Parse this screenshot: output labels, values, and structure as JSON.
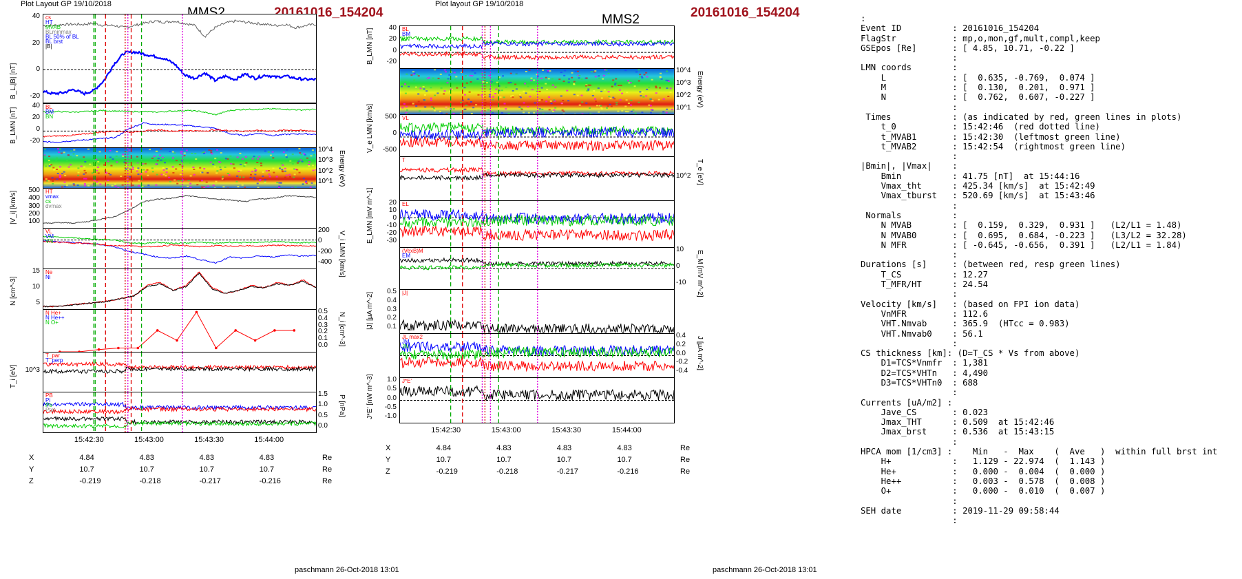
{
  "left": {
    "header_small": "Plot Layout GP 19/10/2018",
    "title": "MMS2",
    "event": "20161016_154204",
    "footer": "paschmann 26-Oct-2018 13:01"
  },
  "right": {
    "header_small": "Plot layout GP 19/10/2018",
    "title": "MMS2",
    "event": "20161016_154204",
    "footer": "paschmann 26-Oct-2018 13:01"
  },
  "colors": {
    "bl": "#0000ff",
    "bm": "#00cc00",
    "bn": "#ff0000",
    "btot": "#606060",
    "black": "#000000",
    "red_line": "#dd0000",
    "green_line": "#00aa00",
    "magenta": "#dd00dd"
  },
  "time_ticks": [
    "15:42:30",
    "15:43:00",
    "15:43:30",
    "15:44:00"
  ],
  "orbit": {
    "labels": [
      "X",
      "Y",
      "Z"
    ],
    "unit": "Re",
    "rows": [
      [
        "4.84",
        "4.83",
        "4.83",
        "4.83"
      ],
      [
        "10.7",
        "10.7",
        "10.7",
        "10.7"
      ],
      [
        "-0.219",
        "-0.218",
        "-0.217",
        "-0.216"
      ]
    ]
  },
  "chart_data": [
    {
      "type": "line",
      "panel": "BL-Btot",
      "ylabel": "B_L,|B| [nT]",
      "ylim": [
        -30,
        50
      ],
      "yticks": [
        "40",
        "20",
        "0",
        "-20"
      ],
      "legend": [
        "cs",
        "HT",
        "MVAB",
        "BLminmax",
        "BL 50% of BL",
        "BL brst",
        "|B|"
      ],
      "series": [
        {
          "name": "|B|",
          "values": [
            40,
            40,
            41,
            41,
            41,
            42,
            40,
            40,
            38,
            40,
            42,
            44,
            43,
            44,
            42,
            40,
            30,
            38,
            42,
            44,
            43,
            42,
            41,
            40,
            41,
            38,
            40,
            41
          ]
        },
        {
          "name": "BL",
          "values": [
            -20,
            -22,
            -21,
            -18,
            -22,
            -19,
            -10,
            5,
            15,
            16,
            14,
            12,
            10,
            5,
            -5,
            -8,
            -3,
            -10,
            -6,
            -9,
            -4,
            -8,
            -5,
            -7,
            -6,
            -8,
            -9,
            -9
          ]
        }
      ]
    },
    {
      "type": "line",
      "panel": "BLMN-left",
      "ylabel": "B_LMN [nT]",
      "ylim": [
        -30,
        50
      ],
      "yticks": [
        "40",
        "20",
        "0",
        "-20"
      ],
      "legend": [
        "BL",
        "BM",
        "BN"
      ],
      "series": [
        {
          "name": "BL",
          "values": [
            -20,
            -20,
            -18,
            -16,
            -14,
            -12,
            5,
            15,
            12,
            12,
            10,
            8,
            5,
            -5,
            -8,
            -4,
            -8,
            -6,
            -5,
            -6
          ]
        },
        {
          "name": "BM",
          "values": [
            35,
            36,
            35,
            36,
            38,
            37,
            36,
            36,
            35,
            37,
            38,
            36,
            30,
            38,
            40,
            40,
            41,
            40,
            39,
            40
          ]
        },
        {
          "name": "BN",
          "values": [
            -10,
            -9,
            -8,
            -5,
            -2,
            0,
            -2,
            0,
            2,
            0,
            1,
            0,
            2,
            1,
            0,
            1,
            0,
            2,
            1,
            0
          ]
        }
      ]
    },
    {
      "type": "heatmap",
      "panel": "ion-spectrogram",
      "ylabel": "Energy (eV)",
      "yticks": [
        "10^4",
        "10^3",
        "10^2",
        "10^1"
      ]
    },
    {
      "type": "line",
      "panel": "Vi-magnitude",
      "ylabel": "|V_i| [km/s]",
      "ylim": [
        50,
        500
      ],
      "yticks": [
        "500",
        "400",
        "300",
        "200",
        "100"
      ],
      "legend": [
        "HT",
        "vmax",
        "cs",
        "dvmax"
      ],
      "series": [
        {
          "name": "|Vi|",
          "values": [
            100,
            110,
            105,
            120,
            150,
            180,
            260,
            350,
            380,
            390,
            420,
            400,
            380,
            370,
            350,
            380,
            390,
            420,
            410,
            400
          ]
        }
      ]
    },
    {
      "type": "line",
      "panel": "Vi-LMN",
      "ylabel": "V_i LMN [km/s]",
      "ylim": [
        -500,
        200
      ],
      "yticks": [
        "200",
        "0",
        "-200",
        "-400"
      ],
      "legend": [
        "VL",
        "VM",
        "VN"
      ],
      "series": [
        {
          "name": "VL",
          "values": [
            -20,
            -30,
            -40,
            -60,
            -80,
            -120,
            -200,
            -250,
            -300,
            -320,
            -280,
            -350,
            -400,
            -300,
            -320,
            -280,
            -300,
            -260,
            -280,
            -270
          ]
        },
        {
          "name": "VM",
          "values": [
            60,
            50,
            40,
            20,
            10,
            0,
            -50,
            -60,
            -40,
            -60,
            -50,
            -40,
            -60,
            -40,
            -50,
            -40,
            -30,
            -40,
            -50,
            -40
          ]
        },
        {
          "name": "VN",
          "values": [
            -30,
            -40,
            -50,
            -60,
            -80,
            -100,
            -100,
            -120,
            -110,
            -90,
            -100,
            -120,
            -100,
            -110,
            -100,
            -110,
            -90,
            -100,
            -100,
            -110
          ]
        }
      ]
    },
    {
      "type": "line",
      "panel": "density",
      "ylabel": "N [cm^-3]",
      "ylim": [
        0,
        15
      ],
      "yticks": [
        "15",
        "10",
        "5"
      ],
      "legend": [
        "Ne",
        "Ni"
      ],
      "series": [
        {
          "name": "Ne",
          "values": [
            1,
            1,
            1.5,
            2,
            2.5,
            3,
            4,
            5,
            9,
            10,
            7,
            9,
            14,
            8,
            6,
            7,
            9,
            8,
            10,
            9,
            11,
            8
          ]
        },
        {
          "name": "Ni",
          "values": [
            1,
            1,
            1.4,
            2,
            2.4,
            3,
            4,
            5,
            8.5,
            9.5,
            7,
            8.5,
            13.5,
            7.5,
            6,
            7,
            8.5,
            8,
            9.5,
            9,
            10.5,
            8
          ]
        }
      ]
    },
    {
      "type": "line",
      "panel": "HPCA",
      "ylabel": "N_i [cm^-3]",
      "ylim": [
        0,
        0.55
      ],
      "yticks": [
        "0.5",
        "0.4",
        "0.3",
        "0.2",
        "0.1",
        "0.0"
      ],
      "legend": [
        "N He+",
        "N He++",
        "N O+"
      ],
      "series": [
        {
          "name": "N He++",
          "values": [
            0.0,
            0.0,
            0.03,
            0.05,
            0.05,
            0.28,
            0.15,
            0.52,
            0.05,
            0.28,
            0.15,
            0.28,
            0.28
          ]
        }
      ]
    },
    {
      "type": "line",
      "panel": "Ti",
      "ylabel": "T_i [eV]",
      "yticks": [
        "10^3"
      ],
      "legend": [
        "T_par",
        "T_perp"
      ]
    },
    {
      "type": "line",
      "panel": "pressure",
      "ylabel": "P [nPa]",
      "ylim": [
        0,
        1.5
      ],
      "yticks": [
        "1.5",
        "1.0",
        "0.5",
        "0.0"
      ],
      "legend": [
        "PB",
        "Pi",
        "Pe",
        "Ptot"
      ]
    },
    {
      "type": "line",
      "panel": "BLMN-right",
      "ylabel": "B_LMN [nT]",
      "ylim": [
        -30,
        50
      ],
      "yticks": [
        "40",
        "20",
        "0",
        "-20"
      ],
      "legend": [
        "BL",
        "BM",
        "BN"
      ]
    },
    {
      "type": "heatmap",
      "panel": "electron-spectrogram",
      "ylabel": "Energy (eV)",
      "yticks": [
        "10^4",
        "10^3",
        "10^2",
        "10^1"
      ]
    },
    {
      "type": "line",
      "panel": "Ve-LMN",
      "ylabel": "V_e LMN [km/s]",
      "ylim": [
        -700,
        800
      ],
      "yticks": [
        "500",
        "0",
        "-500"
      ],
      "legend": [
        "VL"
      ]
    },
    {
      "type": "line",
      "panel": "Te",
      "ylabel": "T_e [eV]",
      "yticks": [
        "10^2"
      ],
      "legend": [
        "T"
      ]
    },
    {
      "type": "line",
      "panel": "E-LMN",
      "ylabel": "E_LMN [mV m^-1]",
      "ylim": [
        -35,
        20
      ],
      "yticks": [
        "20",
        "10",
        "0",
        "-10",
        "-20",
        "-30"
      ],
      "legend": [
        "EL"
      ]
    },
    {
      "type": "line",
      "panel": "EM",
      "ylabel": "E_M [mV m^-2]",
      "ylim": [
        -15,
        15
      ],
      "yticks": [
        "10",
        "0",
        "-10"
      ],
      "legend": [
        "(VexB)M",
        "EM"
      ]
    },
    {
      "type": "line",
      "panel": "J-magnitude",
      "ylabel": "|J| [μA m^-2]",
      "ylim": [
        0,
        0.5
      ],
      "yticks": [
        "0.5",
        "0.4",
        "0.3",
        "0.2",
        "0.1"
      ],
      "legend": [
        "|J|"
      ]
    },
    {
      "type": "line",
      "panel": "J-components",
      "ylabel": "J [μA m^-2]",
      "ylim": [
        -0.5,
        0.5
      ],
      "yticks": [
        "0.4",
        "0.2",
        "0.0",
        "-0.2",
        "-0.4"
      ],
      "legend": [
        "JL max2",
        "JM",
        "JN"
      ]
    },
    {
      "type": "line",
      "panel": "JdotE",
      "ylabel": "J*E' [nW m^-3]",
      "ylim": [
        -1.0,
        1.0
      ],
      "yticks": [
        "1.0",
        "0.5",
        "0.0",
        "-0.5",
        "-1.0"
      ],
      "legend": [
        "J*E'"
      ]
    }
  ],
  "meta_lines": [
    ":",
    "Event ID          : 20161016_154204",
    "FlagStr           : mp,o,mon,gf,mult,compl,keep",
    "GSEpos [Re]       : [ 4.85, 10.71, -0.22 ]",
    "                  :",
    "LMN coords        :",
    "    L             : [  0.635, -0.769,  0.074 ]",
    "    M             : [  0.130,  0.201,  0.971 ]",
    "    N             : [  0.762,  0.607, -0.227 ]",
    "                  :",
    " Times            : (as indicated by red, green lines in plots)",
    "    t_0           : 15:42:46  (red dotted line)",
    "    t_MVAB1       : 15:42:30  (leftmost green line)",
    "    t_MVAB2       : 15:42:54  (rightmost green line)",
    "                  :",
    "|Bmin|, |Vmax|    :",
    "    Bmin          : 41.75 [nT]  at 15:44:16",
    "    Vmax_tht      : 425.34 [km/s]  at 15:42:49",
    "    Vmax_tburst   : 520.69 [km/s]  at 15:43:46",
    "                  :",
    " Normals          :",
    "    N MVAB        : [  0.159,  0.329,  0.931 ]   (L2/L1 = 1.48)",
    "    N MVAB0       : [  0.695,  0.684, -0.223 ]   (L3/L2 = 32.28)",
    "    N MFR         : [ -0.645, -0.656,  0.391 ]   (L2/L1 = 1.84)",
    "                  :",
    "Durations [s]     : (between red, resp green lines)",
    "    T_CS          : 12.27",
    "    T_MFR/HT      : 24.54",
    "                  :",
    "Velocity [km/s]   : (based on FPI ion data)",
    "    VnMFR         : 112.6",
    "    VHT.Nmvab     : 365.9  (HTcc = 0.983)",
    "    VHT.Nmvab0    : 56.1",
    "                  :",
    "CS thickness [km]: (D=T_CS * Vs from above)",
    "    D1=TCS*Vnmfr  : 1,381",
    "    D2=TCS*VHTn   : 4,490",
    "    D3=TCS*VHTn0  : 688",
    "                  :",
    "Currents [uA/m2] :",
    "    Jave_CS       : 0.023",
    "    Jmax_THT      : 0.509  at 15:42:46",
    "    Jmax_brst     : 0.536  at 15:43:15",
    "                  :",
    "HPCA mom [1/cm3] :    Min   -  Max    (  Ave   )  within full brst int",
    "    H+            :   1.129 - 22.974  (  1.143 )",
    "    He+           :   0.000 -  0.004  (  0.000 )",
    "    He++          :   0.003 -  0.578  (  0.008 )",
    "    O+            :   0.000 -  0.010  (  0.007 )",
    "                  :",
    "SEH date          : 2019-11-29 09:58:44",
    "                  :"
  ]
}
